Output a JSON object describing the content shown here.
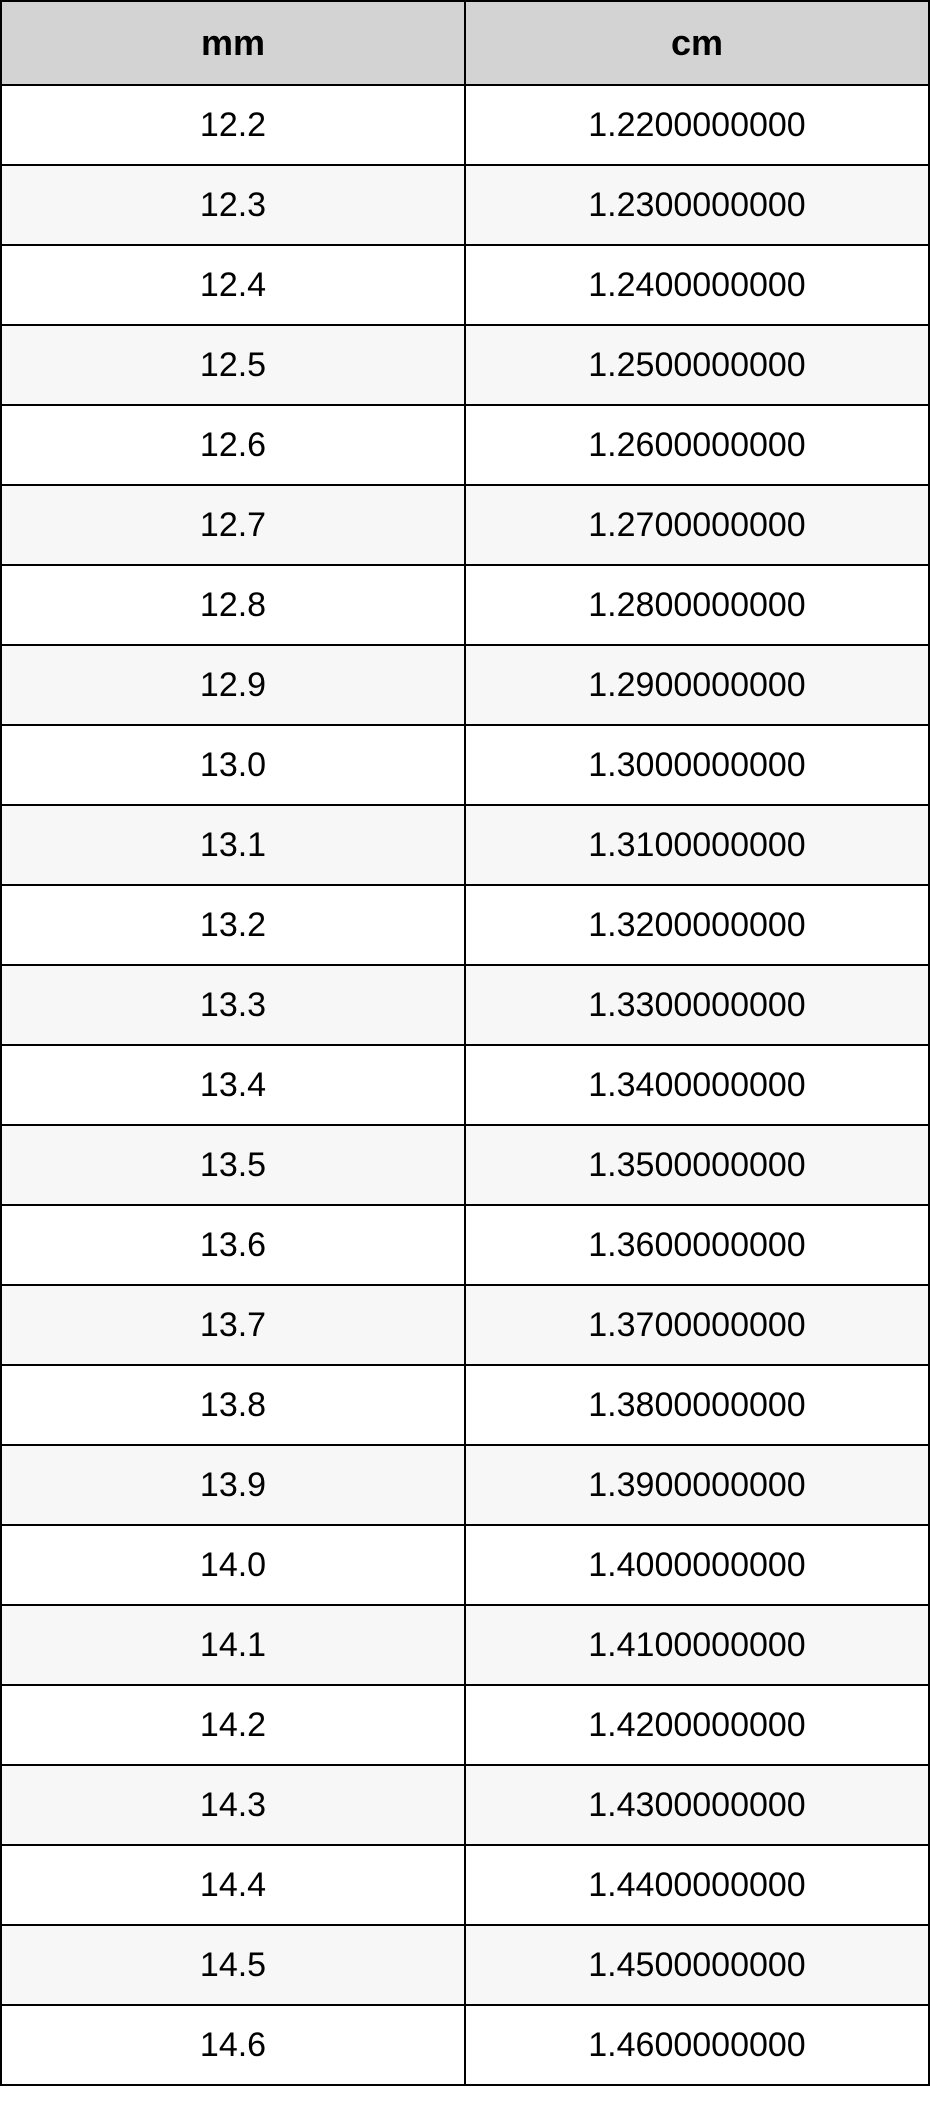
{
  "table": {
    "columns": [
      "mm",
      "cm"
    ],
    "header_bg": "#d3d3d3",
    "border_color": "#000000",
    "row_bg_odd": "#ffffff",
    "row_bg_even": "#f7f7f7",
    "font_size_header_pt": 27,
    "font_size_cell_pt": 26,
    "rows": [
      {
        "mm": "12.2",
        "cm": "1.2200000000"
      },
      {
        "mm": "12.3",
        "cm": "1.2300000000"
      },
      {
        "mm": "12.4",
        "cm": "1.2400000000"
      },
      {
        "mm": "12.5",
        "cm": "1.2500000000"
      },
      {
        "mm": "12.6",
        "cm": "1.2600000000"
      },
      {
        "mm": "12.7",
        "cm": "1.2700000000"
      },
      {
        "mm": "12.8",
        "cm": "1.2800000000"
      },
      {
        "mm": "12.9",
        "cm": "1.2900000000"
      },
      {
        "mm": "13.0",
        "cm": "1.3000000000"
      },
      {
        "mm": "13.1",
        "cm": "1.3100000000"
      },
      {
        "mm": "13.2",
        "cm": "1.3200000000"
      },
      {
        "mm": "13.3",
        "cm": "1.3300000000"
      },
      {
        "mm": "13.4",
        "cm": "1.3400000000"
      },
      {
        "mm": "13.5",
        "cm": "1.3500000000"
      },
      {
        "mm": "13.6",
        "cm": "1.3600000000"
      },
      {
        "mm": "13.7",
        "cm": "1.3700000000"
      },
      {
        "mm": "13.8",
        "cm": "1.3800000000"
      },
      {
        "mm": "13.9",
        "cm": "1.3900000000"
      },
      {
        "mm": "14.0",
        "cm": "1.4000000000"
      },
      {
        "mm": "14.1",
        "cm": "1.4100000000"
      },
      {
        "mm": "14.2",
        "cm": "1.4200000000"
      },
      {
        "mm": "14.3",
        "cm": "1.4300000000"
      },
      {
        "mm": "14.4",
        "cm": "1.4400000000"
      },
      {
        "mm": "14.5",
        "cm": "1.4500000000"
      },
      {
        "mm": "14.6",
        "cm": "1.4600000000"
      }
    ]
  }
}
